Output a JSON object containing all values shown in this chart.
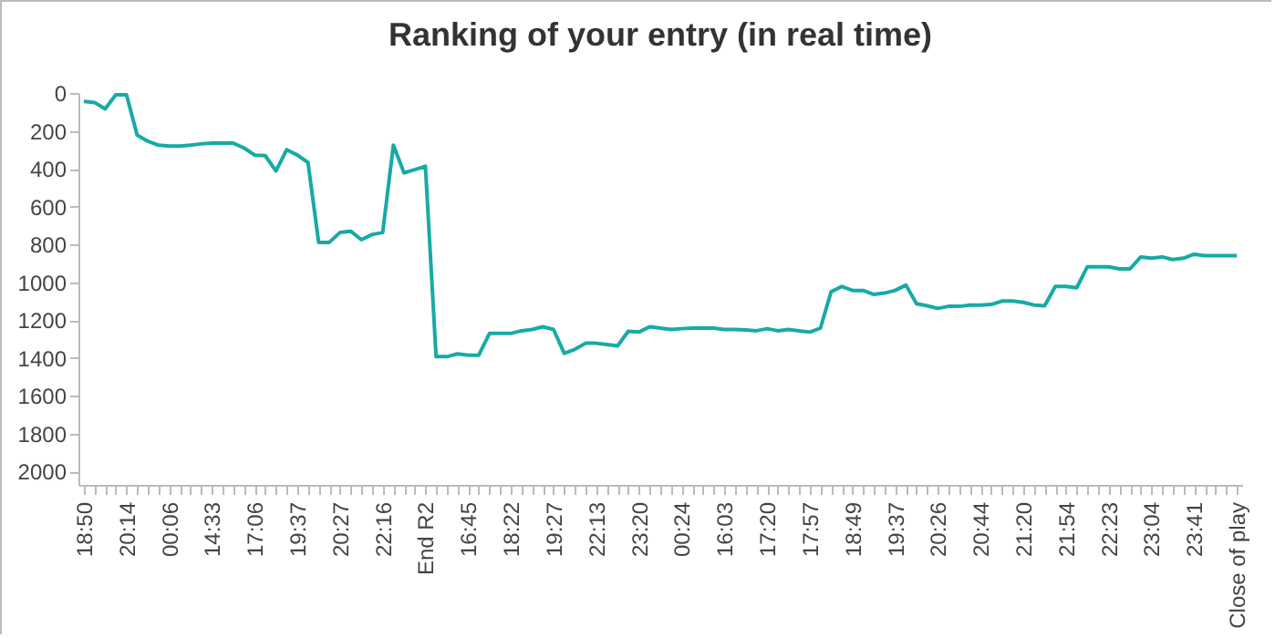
{
  "chart_data": {
    "type": "line",
    "title": "Ranking of your entry (in real time)",
    "categories": [
      "18:50",
      null,
      null,
      null,
      "20:14",
      null,
      null,
      null,
      "00:06",
      null,
      null,
      null,
      "14:33",
      null,
      null,
      null,
      "17:06",
      null,
      null,
      null,
      "19:37",
      null,
      null,
      null,
      "20:27",
      null,
      null,
      null,
      "22:16",
      null,
      null,
      null,
      "End R2",
      null,
      null,
      null,
      "16:45",
      null,
      null,
      null,
      "18:22",
      null,
      null,
      null,
      "19:27",
      null,
      null,
      null,
      "22:13",
      null,
      null,
      null,
      "23:20",
      null,
      null,
      null,
      "00:24",
      null,
      null,
      null,
      "16:03",
      null,
      null,
      null,
      "17:20",
      null,
      null,
      null,
      "17:57",
      null,
      null,
      null,
      "18:49",
      null,
      null,
      null,
      "19:37",
      null,
      null,
      null,
      "20:26",
      null,
      null,
      null,
      "20:44",
      null,
      null,
      null,
      "21:20",
      null,
      null,
      null,
      "21:54",
      null,
      null,
      null,
      "22:23",
      null,
      null,
      null,
      "23:04",
      null,
      null,
      null,
      "23:41",
      null,
      null,
      null,
      "Close of play"
    ],
    "series": [
      {
        "color": "#17aaa6",
        "values": [
          45,
          50,
          84,
          10,
          10,
          223,
          255,
          276,
          280,
          280,
          276,
          269,
          265,
          265,
          265,
          290,
          328,
          331,
          412,
          300,
          328,
          367,
          789,
          789,
          737,
          730,
          775,
          748,
          737,
          276,
          422,
          405,
          387,
          1393,
          1393,
          1378,
          1385,
          1385,
          1270,
          1270,
          1270,
          1256,
          1249,
          1235,
          1249,
          1375,
          1354,
          1322,
          1322,
          1329,
          1336,
          1259,
          1263,
          1235,
          1242,
          1249,
          1245,
          1242,
          1242,
          1242,
          1249,
          1249,
          1252,
          1256,
          1245,
          1256,
          1249,
          1256,
          1263,
          1242,
          1050,
          1022,
          1043,
          1043,
          1064,
          1057,
          1043,
          1015,
          1113,
          1124,
          1138,
          1127,
          1127,
          1120,
          1120,
          1117,
          1099,
          1099,
          1106,
          1120,
          1124,
          1022,
          1022,
          1029,
          918,
          918,
          918,
          929,
          929,
          866,
          873,
          866,
          880,
          873,
          852,
          859,
          859,
          859,
          859
        ]
      }
    ],
    "ylim": [
      2070,
      0
    ],
    "yticks": [
      0,
      200,
      400,
      600,
      800,
      1000,
      1200,
      1400,
      1600,
      1800,
      2000
    ],
    "grid": false,
    "marker": "none",
    "line_style": "solid"
  }
}
